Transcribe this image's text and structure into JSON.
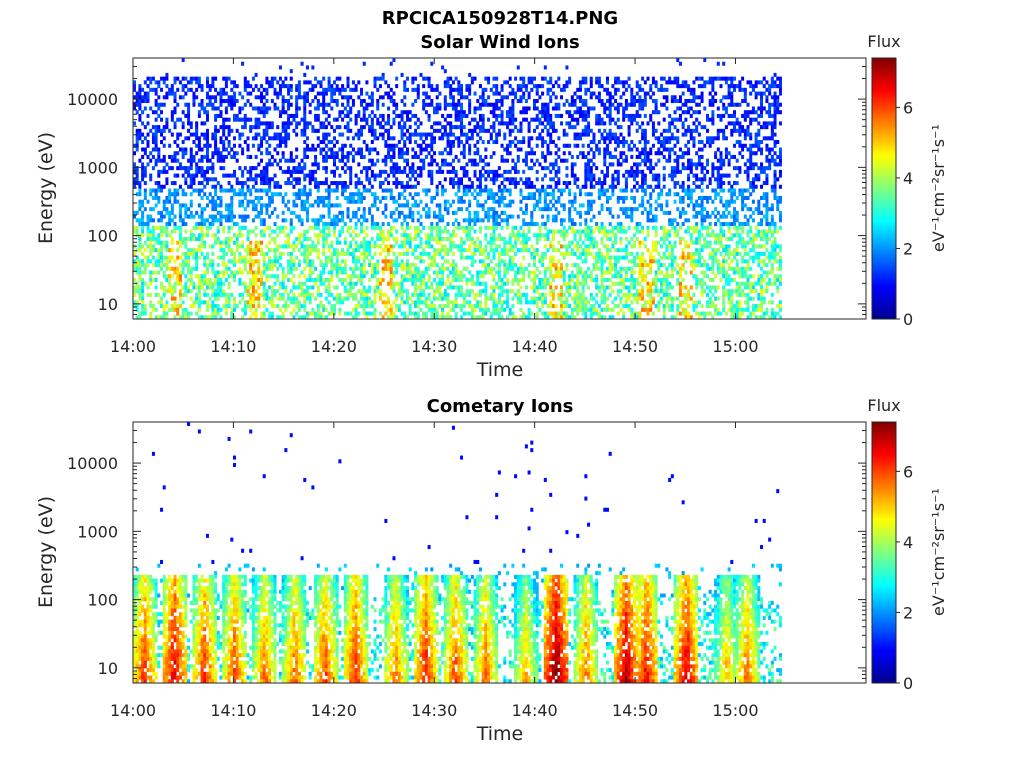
{
  "figure": {
    "title": "RPCICA150928T14.PNG"
  },
  "chart_data": [
    {
      "type": "heatmap",
      "title": "Solar Wind Ions",
      "xlabel": "Time",
      "ylabel": "Energy (eV)",
      "y_scale": "log",
      "ylim": [
        6,
        40000
      ],
      "x_ticks": [
        "14:00",
        "14:10",
        "14:20",
        "14:30",
        "14:40",
        "14:50",
        "15:00"
      ],
      "y_ticks": [
        "10",
        "100",
        "1000",
        "10000"
      ],
      "colorbar": {
        "title": "Flux",
        "label": "eV⁻¹cm⁻²sr⁻¹s⁻¹",
        "ticks": [
          "0",
          "2",
          "4",
          "6"
        ],
        "range": [
          0,
          7.4
        ],
        "colormap": "jet"
      },
      "description_values": {
        "low_energy_band_flux": [
          2.5,
          4.5
        ],
        "high_energy_band_flux": [
          0.8,
          1.6
        ],
        "bright_low_energy_times": [
          "14:04",
          "14:12",
          "14:25",
          "14:42",
          "14:51",
          "14:55"
        ]
      },
      "grid": false
    },
    {
      "type": "heatmap",
      "title": "Cometary Ions",
      "xlabel": "Time",
      "ylabel": "Energy (eV)",
      "y_scale": "log",
      "ylim": [
        6,
        40000
      ],
      "x_ticks": [
        "14:00",
        "14:10",
        "14:20",
        "14:30",
        "14:40",
        "14:50",
        "15:00"
      ],
      "y_ticks": [
        "10",
        "100",
        "1000",
        "10000"
      ],
      "colorbar": {
        "title": "Flux",
        "label": "eV⁻¹cm⁻²sr⁻¹s⁻¹",
        "ticks": [
          "0",
          "2",
          "4",
          "6"
        ],
        "range": [
          0,
          7.4
        ],
        "colormap": "jet"
      },
      "description_values": {
        "burst_times": [
          "14:01",
          "14:04",
          "14:07",
          "14:10",
          "14:13",
          "14:16",
          "14:19",
          "14:22",
          "14:26",
          "14:29",
          "14:32",
          "14:35",
          "14:39",
          "14:42",
          "14:45",
          "14:49",
          "14:51",
          "14:55",
          "14:59",
          "15:01"
        ],
        "burst_peak_flux": [
          6.0,
          6.5,
          6.0,
          5.8,
          5.5,
          5.6,
          5.8,
          6.0,
          5.5,
          6.2,
          5.8,
          5.5,
          5.0,
          7.2,
          5.5,
          6.8,
          6.3,
          6.5,
          5.0,
          5.5
        ]
      },
      "grid": false
    }
  ]
}
